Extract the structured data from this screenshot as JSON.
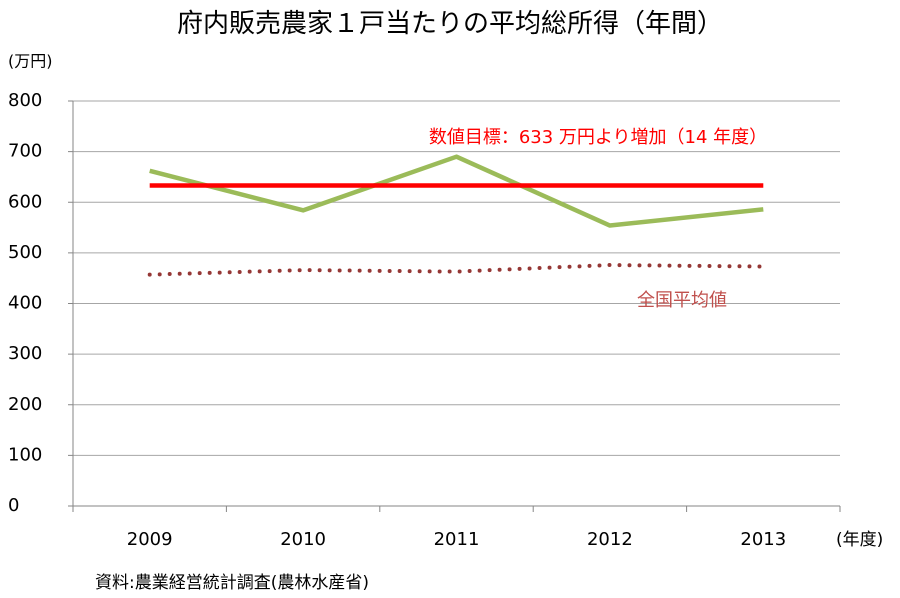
{
  "chart_data": {
    "type": "line",
    "title": "府内販売農家１戸当たりの平均総所得（年間）",
    "y_label": "(万円)",
    "x_label": "(年度)",
    "source": "資料:農業経営統計調査(農林水産省)",
    "categories": [
      "2009",
      "2010",
      "2011",
      "2012",
      "2013"
    ],
    "series": [
      {
        "color": "#9bbb59",
        "style": "solid",
        "values": [
          662,
          584,
          690,
          554,
          586
        ]
      },
      {
        "name": "数値目標：633 万円より増加（14 年度）",
        "color": "#ff0000",
        "style": "solid",
        "values": [
          633,
          633,
          633,
          633,
          633
        ]
      },
      {
        "name": "全国平均値",
        "color": "#953735",
        "style": "dotted",
        "values": [
          457,
          466,
          463,
          476,
          473
        ]
      }
    ],
    "ylim": [
      0,
      800
    ],
    "yticks": [
      0,
      100,
      200,
      300,
      400,
      500,
      600,
      700,
      800
    ],
    "grid": true
  }
}
